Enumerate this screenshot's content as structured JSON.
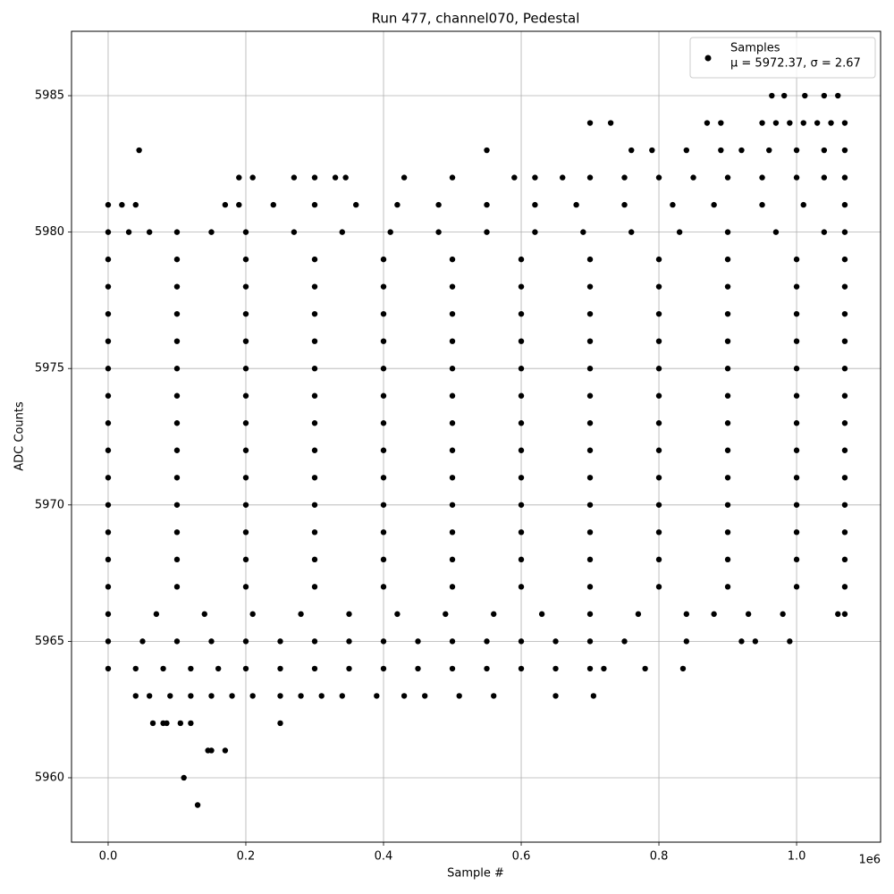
{
  "chart_data": {
    "type": "scatter",
    "title": "Run 477, channel070, Pedestal",
    "x_label": "Sample #",
    "y_label": "ADC Counts",
    "x_offset_label": "1e6",
    "xlim": [
      -0.0532,
      1.122
    ],
    "ylim": [
      5957.64,
      5987.36
    ],
    "xticks": [
      {
        "value": 0,
        "label": "0.0"
      },
      0.2,
      0.4,
      0.6,
      0.8,
      {
        "value": 1,
        "label": "1.0"
      }
    ],
    "yticks": [
      5960,
      5965,
      5970,
      5975,
      5980,
      5985
    ],
    "grid": true,
    "legend": "upper right",
    "legend_note": "μ = 5972.37, σ = 2.67",
    "series": [
      {
        "name": "Samples",
        "color": "#000000",
        "x": [
          0.964,
          0.982,
          1.012,
          1.04,
          1.06,
          0.7,
          0.73,
          0.87,
          0.89,
          0.95,
          0.97,
          0.99,
          1.01,
          1.03,
          1.05,
          1.07,
          0.045,
          0.55,
          0.76,
          0.79,
          0.84,
          0.89,
          0.92,
          0.96,
          1.0,
          1.04,
          1.07,
          0.19,
          0.21,
          0.27,
          0.3,
          0.33,
          0.345,
          0.43,
          0.5,
          0.59,
          0.62,
          0.66,
          0.7,
          0.75,
          0.8,
          0.85,
          0.9,
          0.95,
          1.0,
          1.04,
          1.07,
          0,
          0.02,
          0.04,
          0.17,
          0.19,
          0.24,
          0.3,
          0.36,
          0.42,
          0.48,
          0.55,
          0.62,
          0.68,
          0.75,
          0.82,
          0.88,
          0.95,
          1.01,
          1.07,
          0,
          0.03,
          0.06,
          0.1,
          0.15,
          0.2,
          0.27,
          0.34,
          0.41,
          0.48,
          0.55,
          0.62,
          0.69,
          0.76,
          0.83,
          0.9,
          0.97,
          1.04,
          1.07,
          0,
          0.1,
          0.2,
          0.3,
          0.4,
          0.5,
          0.6,
          0.7,
          0.8,
          0.9,
          1.0,
          1.07,
          0,
          0.1,
          0.2,
          0.3,
          0.4,
          0.5,
          0.6,
          0.7,
          0.8,
          0.9,
          1.0,
          1.07,
          0,
          0.1,
          0.2,
          0.3,
          0.4,
          0.5,
          0.6,
          0.7,
          0.8,
          0.9,
          1.0,
          1.07,
          0,
          0.1,
          0.2,
          0.3,
          0.4,
          0.5,
          0.6,
          0.7,
          0.8,
          0.9,
          1.0,
          1.07,
          0,
          0.1,
          0.2,
          0.3,
          0.4,
          0.5,
          0.6,
          0.7,
          0.8,
          0.9,
          1.0,
          1.07,
          0,
          0.1,
          0.2,
          0.3,
          0.4,
          0.5,
          0.6,
          0.7,
          0.8,
          0.9,
          1.0,
          1.07,
          0,
          0.1,
          0.2,
          0.3,
          0.4,
          0.5,
          0.6,
          0.7,
          0.8,
          0.9,
          1.0,
          1.07,
          0,
          0.1,
          0.2,
          0.3,
          0.4,
          0.5,
          0.6,
          0.7,
          0.8,
          0.9,
          1.0,
          1.07,
          0,
          0.1,
          0.2,
          0.3,
          0.4,
          0.5,
          0.6,
          0.7,
          0.8,
          0.9,
          1.0,
          1.07,
          0,
          0.1,
          0.2,
          0.3,
          0.4,
          0.5,
          0.6,
          0.7,
          0.8,
          0.9,
          1.0,
          1.07,
          0,
          0.1,
          0.2,
          0.3,
          0.4,
          0.5,
          0.6,
          0.7,
          0.8,
          0.9,
          1.0,
          1.07,
          0,
          0.1,
          0.2,
          0.3,
          0.4,
          0.5,
          0.6,
          0.7,
          0.8,
          0.9,
          1.0,
          1.07,
          0,
          0.1,
          0.2,
          0.3,
          0.4,
          0.5,
          0.6,
          0.7,
          0.8,
          0.9,
          1.0,
          1.07,
          0,
          0.07,
          0.14,
          0.21,
          0.28,
          0.35,
          0.42,
          0.49,
          0.56,
          0.63,
          0.7,
          0.77,
          0.84,
          0.88,
          0.93,
          0.98,
          1.06,
          1.07,
          0,
          0.05,
          0.1,
          0.15,
          0.2,
          0.25,
          0.3,
          0.35,
          0.4,
          0.45,
          0.5,
          0.55,
          0.6,
          0.65,
          0.7,
          0.75,
          0.84,
          0.92,
          0.94,
          0.99,
          0,
          0.04,
          0.08,
          0.12,
          0.16,
          0.2,
          0.25,
          0.3,
          0.35,
          0.4,
          0.45,
          0.5,
          0.55,
          0.6,
          0.65,
          0.7,
          0.72,
          0.78,
          0.835,
          0.04,
          0.06,
          0.09,
          0.12,
          0.15,
          0.18,
          0.21,
          0.25,
          0.28,
          0.31,
          0.34,
          0.39,
          0.43,
          0.46,
          0.51,
          0.56,
          0.65,
          0.705,
          0.065,
          0.08,
          0.085,
          0.105,
          0.12,
          0.25,
          0.145,
          0.15,
          0.17,
          0.11,
          0.13
        ],
        "values": [
          5985,
          5985,
          5985,
          5985,
          5985,
          5984,
          5984,
          5984,
          5984,
          5984,
          5984,
          5984,
          5984,
          5984,
          5984,
          5984,
          5983,
          5983,
          5983,
          5983,
          5983,
          5983,
          5983,
          5983,
          5983,
          5983,
          5983,
          5982,
          5982,
          5982,
          5982,
          5982,
          5982,
          5982,
          5982,
          5982,
          5982,
          5982,
          5982,
          5982,
          5982,
          5982,
          5982,
          5982,
          5982,
          5982,
          5982,
          5981,
          5981,
          5981,
          5981,
          5981,
          5981,
          5981,
          5981,
          5981,
          5981,
          5981,
          5981,
          5981,
          5981,
          5981,
          5981,
          5981,
          5981,
          5981,
          5980,
          5980,
          5980,
          5980,
          5980,
          5980,
          5980,
          5980,
          5980,
          5980,
          5980,
          5980,
          5980,
          5980,
          5980,
          5980,
          5980,
          5980,
          5980,
          5979,
          5979,
          5979,
          5979,
          5979,
          5979,
          5979,
          5979,
          5979,
          5979,
          5979,
          5979,
          5978,
          5978,
          5978,
          5978,
          5978,
          5978,
          5978,
          5978,
          5978,
          5978,
          5978,
          5978,
          5977,
          5977,
          5977,
          5977,
          5977,
          5977,
          5977,
          5977,
          5977,
          5977,
          5977,
          5977,
          5976,
          5976,
          5976,
          5976,
          5976,
          5976,
          5976,
          5976,
          5976,
          5976,
          5976,
          5976,
          5975,
          5975,
          5975,
          5975,
          5975,
          5975,
          5975,
          5975,
          5975,
          5975,
          5975,
          5975,
          5974,
          5974,
          5974,
          5974,
          5974,
          5974,
          5974,
          5974,
          5974,
          5974,
          5974,
          5974,
          5973,
          5973,
          5973,
          5973,
          5973,
          5973,
          5973,
          5973,
          5973,
          5973,
          5973,
          5973,
          5972,
          5972,
          5972,
          5972,
          5972,
          5972,
          5972,
          5972,
          5972,
          5972,
          5972,
          5972,
          5971,
          5971,
          5971,
          5971,
          5971,
          5971,
          5971,
          5971,
          5971,
          5971,
          5971,
          5971,
          5970,
          5970,
          5970,
          5970,
          5970,
          5970,
          5970,
          5970,
          5970,
          5970,
          5970,
          5970,
          5969,
          5969,
          5969,
          5969,
          5969,
          5969,
          5969,
          5969,
          5969,
          5969,
          5969,
          5969,
          5968,
          5968,
          5968,
          5968,
          5968,
          5968,
          5968,
          5968,
          5968,
          5968,
          5968,
          5968,
          5967,
          5967,
          5967,
          5967,
          5967,
          5967,
          5967,
          5967,
          5967,
          5967,
          5967,
          5967,
          5966,
          5966,
          5966,
          5966,
          5966,
          5966,
          5966,
          5966,
          5966,
          5966,
          5966,
          5966,
          5966,
          5966,
          5966,
          5966,
          5966,
          5966,
          5965,
          5965,
          5965,
          5965,
          5965,
          5965,
          5965,
          5965,
          5965,
          5965,
          5965,
          5965,
          5965,
          5965,
          5965,
          5965,
          5965,
          5965,
          5965,
          5965,
          5964,
          5964,
          5964,
          5964,
          5964,
          5964,
          5964,
          5964,
          5964,
          5964,
          5964,
          5964,
          5964,
          5964,
          5964,
          5964,
          5964,
          5964,
          5964,
          5963,
          5963,
          5963,
          5963,
          5963,
          5963,
          5963,
          5963,
          5963,
          5963,
          5963,
          5963,
          5963,
          5963,
          5963,
          5963,
          5963,
          5963,
          5962,
          5962,
          5962,
          5962,
          5962,
          5962,
          5961,
          5961,
          5961,
          5960,
          5959
        ]
      }
    ]
  }
}
